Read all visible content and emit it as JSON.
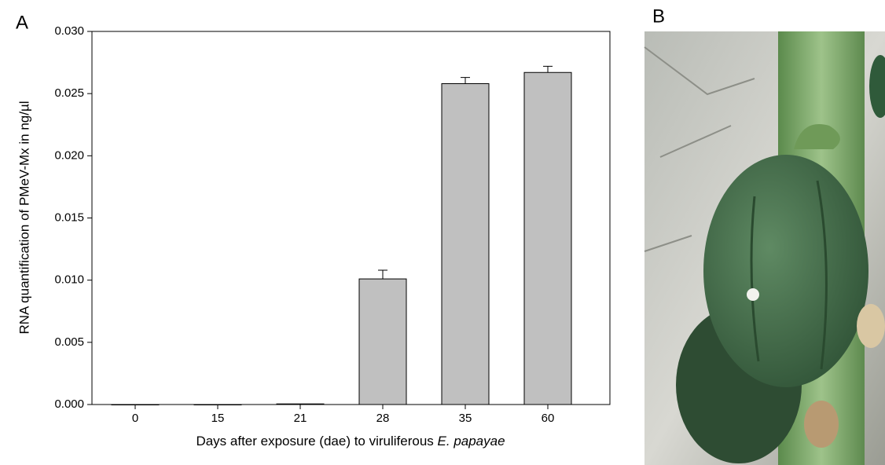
{
  "panel_labels": [
    "A",
    "B"
  ],
  "chart_data": {
    "type": "bar",
    "y_label": "RNA quantification of PMeV-Mx in ng/µl",
    "x_label": {
      "text": "Days after exposure (dae) to viruliferous",
      "species": "E. papayae"
    },
    "categories": [
      "0",
      "15",
      "21",
      "28",
      "35",
      "60"
    ],
    "values": [
      0,
      0,
      5e-05,
      0.0101,
      0.0258,
      0.0267
    ],
    "errors": [
      0,
      0,
      0,
      0.0007,
      0.0005,
      0.0005
    ],
    "color": "#c0c0c0",
    "ylim": [
      0,
      0.03
    ],
    "yticks": [
      {
        "value": 0,
        "label": "0.000"
      },
      {
        "value": 0.005,
        "label": "0.005"
      },
      {
        "value": 0.01,
        "label": "0.010"
      },
      {
        "value": 0.015,
        "label": "0.015"
      },
      {
        "value": 0.02,
        "label": "0.020"
      },
      {
        "value": 0.025,
        "label": "0.025"
      },
      {
        "value": 0.03,
        "label": "0.030"
      }
    ],
    "grid": false
  }
}
